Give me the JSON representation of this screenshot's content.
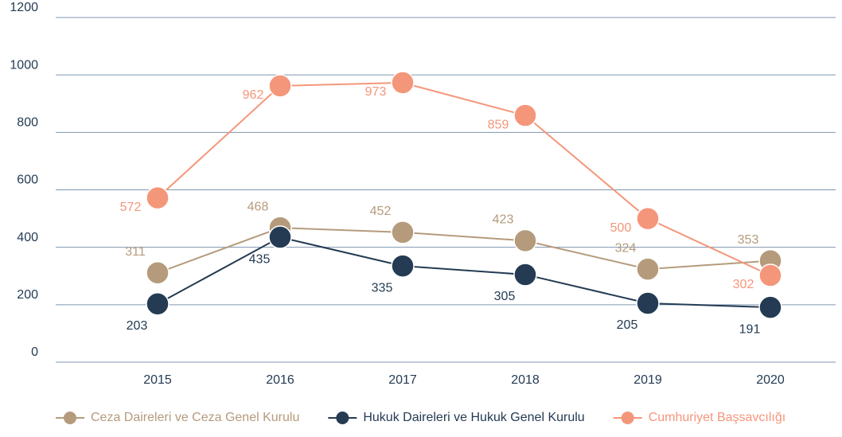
{
  "chart_data": {
    "type": "line",
    "categories": [
      "2015",
      "2016",
      "2017",
      "2018",
      "2019",
      "2020"
    ],
    "series": [
      {
        "name": "Ceza Daireleri ve Ceza Genel Kurulu",
        "color": "#b59b7c",
        "values": [
          311,
          468,
          452,
          423,
          324,
          353
        ]
      },
      {
        "name": "Hukuk Daireleri ve Hukuk Genel Kurulu",
        "color": "#243b53",
        "values": [
          203,
          435,
          335,
          305,
          205,
          191
        ]
      },
      {
        "name": "Cumhuriyet Başsavcılığı",
        "color": "#f4967a",
        "values": [
          572,
          962,
          973,
          859,
          500,
          302
        ]
      }
    ],
    "ylim": [
      0,
      1200
    ],
    "yticks": [
      0,
      200,
      400,
      600,
      800,
      1000,
      1200
    ],
    "grid": true,
    "legend": "bottom"
  }
}
